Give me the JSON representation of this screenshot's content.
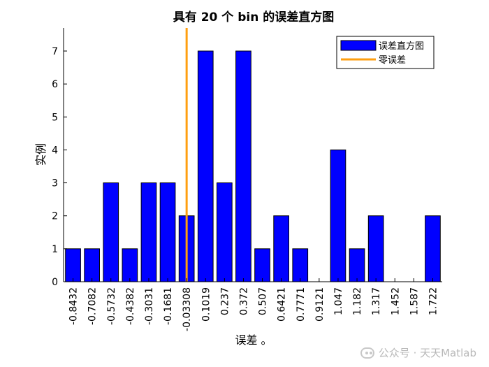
{
  "chart_data": {
    "type": "bar",
    "title": "具有 20 个 bin 的误差直方图",
    "xlabel": "误差 。",
    "ylabel": "实例",
    "categories": [
      "-0.8432",
      "-0.7082",
      "-0.5732",
      "-0.4382",
      "-0.3031",
      "-0.1681",
      "-0.03308",
      "0.1019",
      "0.237",
      "0.372",
      "0.507",
      "0.6421",
      "0.7771",
      "0.9121",
      "1.047",
      "1.182",
      "1.317",
      "1.452",
      "1.587",
      "1.722"
    ],
    "values": [
      1,
      1,
      3,
      1,
      3,
      3,
      2,
      7,
      3,
      7,
      1,
      2,
      1,
      0,
      4,
      1,
      2,
      0,
      0,
      2
    ],
    "ylim": [
      0,
      7.7
    ],
    "yticks": [
      0,
      1,
      2,
      3,
      4,
      5,
      6,
      7
    ],
    "bar_color": "#0000ff",
    "zero_error_line": {
      "x_index": 6.5,
      "color": "#ff9f0f"
    },
    "legend": {
      "position": "top-right",
      "entries": [
        {
          "label": "误差直方图",
          "kind": "bar",
          "color": "#0000ff"
        },
        {
          "label": "零误差",
          "kind": "line",
          "color": "#ff9f0f"
        }
      ]
    },
    "grid": false
  },
  "watermark": {
    "text": "公众号 · 天天Matlab",
    "icon": "wechat-icon"
  }
}
